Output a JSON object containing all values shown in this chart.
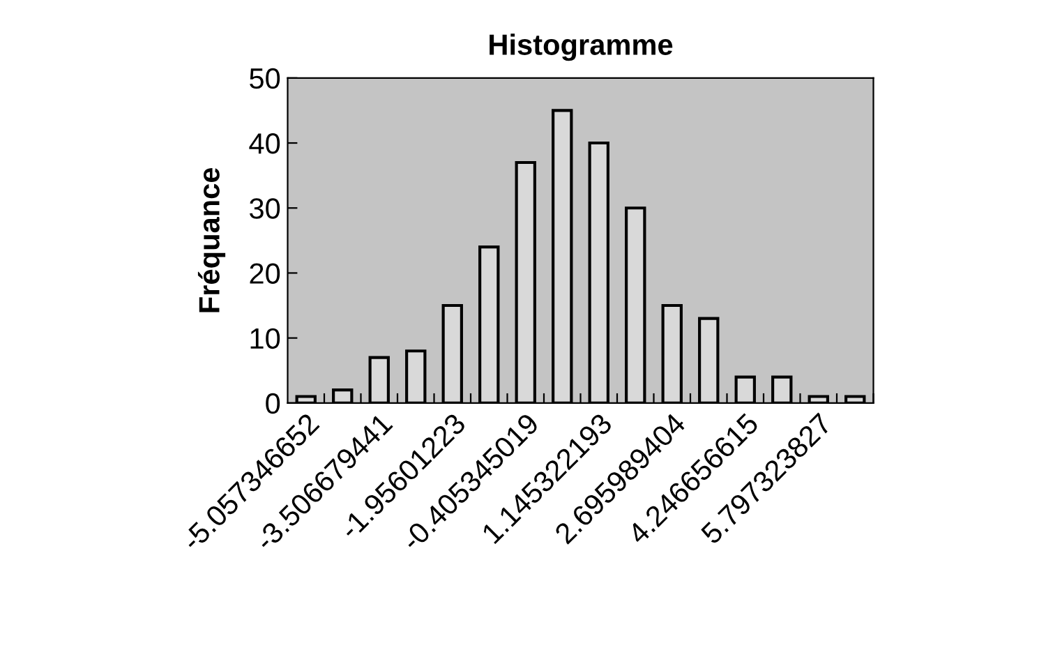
{
  "chart_data": {
    "type": "bar",
    "title": "Histogramme",
    "ylabel": "Fréquance",
    "categories": [
      "-5.057346652",
      null,
      "-3.506679441",
      null,
      "-1.95601223",
      null,
      "-0.405345019",
      null,
      "1.145322193",
      null,
      "2.695989404",
      null,
      "4.246656615",
      null,
      "5.797323827",
      null
    ],
    "values": [
      1,
      2,
      7,
      8,
      15,
      24,
      37,
      45,
      40,
      30,
      15,
      13,
      4,
      4,
      1,
      1
    ],
    "color": "#d9d9d9",
    "ylim": [
      0,
      50
    ],
    "yticks": [
      0,
      10,
      20,
      30,
      40,
      50
    ],
    "grid": false,
    "legend": false
  }
}
